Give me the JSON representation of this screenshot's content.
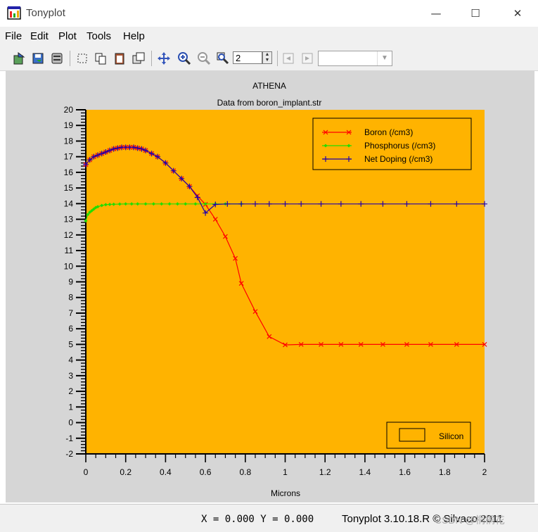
{
  "window": {
    "title": "Tonyplot",
    "minimize_glyph": "—",
    "maximize_glyph": "☐",
    "close_glyph": "✕"
  },
  "menu": [
    "File",
    "Edit",
    "Plot",
    "Tools",
    "Help"
  ],
  "toolbar": {
    "zoom_value": "2",
    "icons": [
      "load-icon",
      "save-icon",
      "print-icon",
      "select-icon",
      "copy-icon",
      "paste-icon",
      "overlay-icon",
      "pan-icon",
      "zoom-in-icon",
      "zoom-out-icon",
      "zoom-box-icon",
      "undo-icon",
      "redo-icon"
    ]
  },
  "status": {
    "coords": "X = 0.000 Y = 0.000",
    "version": "Tonyplot 3.10.18.R © Silvaco 2011",
    "watermark": "CSDN @桐桐花"
  },
  "colors": {
    "plot_bg": "#ffb300",
    "boron": "#ff0000",
    "phosphorus": "#22dd00",
    "net": "#2200aa",
    "silicon": "#ffb300"
  },
  "chart_data": {
    "type": "line",
    "title": "ATHENA",
    "subtitle": "Data from boron_implant.str",
    "xlabel": "Microns",
    "ylabel": "",
    "xlim": [
      0,
      2
    ],
    "ylim": [
      -2,
      20
    ],
    "x_ticks": [
      "0",
      "0.2",
      "0.4",
      "0.6",
      "0.8",
      "1",
      "1.2",
      "1.4",
      "1.6",
      "1.8",
      "2"
    ],
    "y_ticks": [
      "-2",
      "-1",
      "0",
      "1",
      "2",
      "3",
      "4",
      "5",
      "6",
      "7",
      "8",
      "9",
      "10",
      "11",
      "12",
      "13",
      "14",
      "15",
      "16",
      "17",
      "18",
      "19",
      "20"
    ],
    "legend_position": "top-right",
    "series": [
      {
        "name": "Boron (/cm3)",
        "color": "#ff0000",
        "marker": "x",
        "x": [
          0,
          0.02,
          0.04,
          0.06,
          0.08,
          0.1,
          0.12,
          0.14,
          0.16,
          0.18,
          0.2,
          0.22,
          0.24,
          0.26,
          0.28,
          0.3,
          0.33,
          0.36,
          0.4,
          0.44,
          0.48,
          0.52,
          0.56,
          0.6,
          0.65,
          0.7,
          0.75,
          0.78,
          0.85,
          0.92,
          1.0,
          1.08,
          1.18,
          1.28,
          1.38,
          1.49,
          1.61,
          1.73,
          1.86,
          2.0
        ],
        "y": [
          16.5,
          16.8,
          17.0,
          17.1,
          17.2,
          17.3,
          17.4,
          17.5,
          17.55,
          17.6,
          17.6,
          17.6,
          17.6,
          17.55,
          17.5,
          17.4,
          17.2,
          17.0,
          16.6,
          16.1,
          15.6,
          15.1,
          14.5,
          13.95,
          13.0,
          11.9,
          10.5,
          8.9,
          7.1,
          5.5,
          4.97,
          5.0,
          5.0,
          5.0,
          5.0,
          5.0,
          5.0,
          5.0,
          5.0,
          5.0
        ]
      },
      {
        "name": "Phosphorus (/cm3)",
        "color": "#22dd00",
        "marker": "diamond",
        "x": [
          0,
          0.01,
          0.02,
          0.03,
          0.04,
          0.05,
          0.06,
          0.08,
          0.1,
          0.12,
          0.14,
          0.17,
          0.2,
          0.23,
          0.26,
          0.3,
          0.34,
          0.38,
          0.42,
          0.46,
          0.5,
          0.55,
          0.6,
          0.65,
          0.7,
          0.78
        ],
        "y": [
          12.9,
          13.3,
          13.45,
          13.55,
          13.65,
          13.75,
          13.8,
          13.88,
          13.93,
          13.95,
          13.96,
          13.97,
          13.98,
          13.98,
          13.98,
          13.98,
          13.98,
          13.98,
          13.98,
          13.98,
          13.98,
          13.98,
          13.98,
          13.98,
          13.98,
          13.98
        ]
      },
      {
        "name": "Net Doping (/cm3)",
        "color": "#2200aa",
        "marker": "plus",
        "x": [
          0,
          0.02,
          0.04,
          0.06,
          0.08,
          0.1,
          0.12,
          0.14,
          0.16,
          0.18,
          0.2,
          0.22,
          0.24,
          0.26,
          0.28,
          0.3,
          0.33,
          0.36,
          0.4,
          0.44,
          0.48,
          0.52,
          0.56,
          0.6,
          0.65,
          0.71,
          0.78,
          0.85,
          0.92,
          1.0,
          1.08,
          1.18,
          1.28,
          1.38,
          1.49,
          1.61,
          1.73,
          1.86,
          2.0
        ],
        "y": [
          16.5,
          16.8,
          17.0,
          17.1,
          17.2,
          17.3,
          17.4,
          17.5,
          17.55,
          17.6,
          17.6,
          17.6,
          17.6,
          17.55,
          17.5,
          17.4,
          17.2,
          17.0,
          16.6,
          16.1,
          15.6,
          15.1,
          14.4,
          13.4,
          13.95,
          13.98,
          13.98,
          13.98,
          13.98,
          13.98,
          13.98,
          13.98,
          13.98,
          13.98,
          13.98,
          13.98,
          13.98,
          13.98,
          13.98
        ]
      }
    ],
    "region_legend": {
      "label": "Silicon",
      "color": "#ffb300"
    }
  }
}
